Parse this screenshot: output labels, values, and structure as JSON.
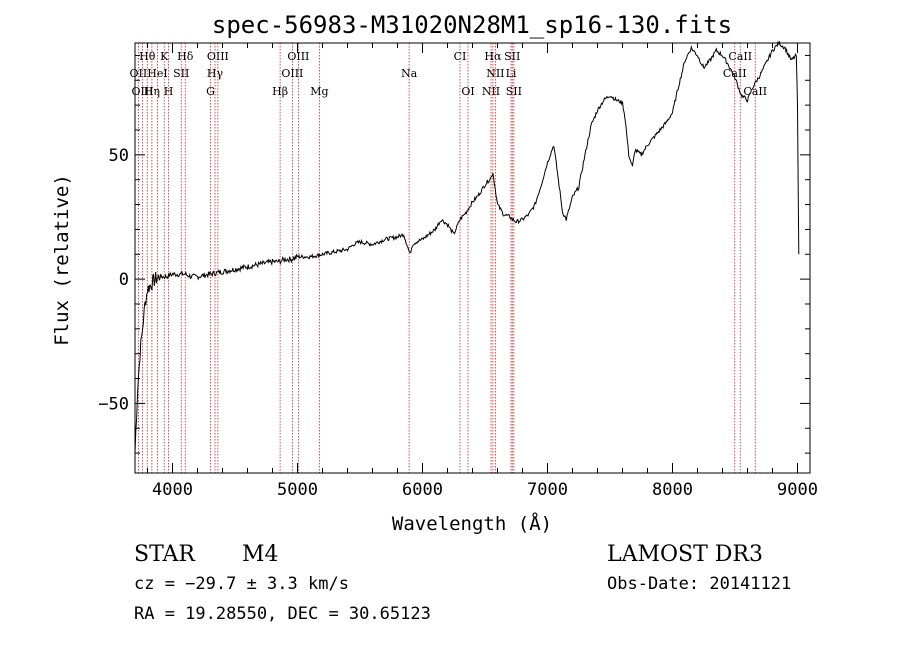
{
  "chart_data": {
    "type": "line",
    "title": "spec-56983-M31020N28M1_sp16-130.fits",
    "xlabel": "Wavelength (Å)",
    "ylabel": "Flux (relative)",
    "xlim": [
      3700,
      9100
    ],
    "ylim": [
      -78,
      95
    ],
    "x_ticks": [
      4000,
      5000,
      6000,
      7000,
      8000,
      9000
    ],
    "y_ticks": [
      -50,
      0,
      50
    ],
    "grid": false,
    "series": [
      {
        "name": "flux",
        "x": [
          3700,
          3720,
          3740,
          3760,
          3780,
          3800,
          3830,
          3860,
          3900,
          3950,
          4000,
          4050,
          4100,
          4150,
          4200,
          4300,
          4400,
          4500,
          4600,
          4700,
          4800,
          4850,
          4900,
          4950,
          5000,
          5100,
          5200,
          5300,
          5400,
          5450,
          5500,
          5600,
          5700,
          5800,
          5850,
          5900,
          5920,
          5950,
          6000,
          6100,
          6150,
          6200,
          6250,
          6300,
          6350,
          6400,
          6450,
          6500,
          6550,
          6563,
          6600,
          6650,
          6700,
          6720,
          6750,
          6800,
          6850,
          6900,
          6950,
          7000,
          7050,
          7100,
          7120,
          7150,
          7200,
          7250,
          7300,
          7350,
          7400,
          7450,
          7500,
          7550,
          7600,
          7620,
          7650,
          7680,
          7700,
          7750,
          7800,
          7850,
          7900,
          7950,
          8000,
          8050,
          8100,
          8150,
          8200,
          8250,
          8300,
          8350,
          8400,
          8450,
          8500,
          8550,
          8600,
          8650,
          8700,
          8750,
          8800,
          8850,
          8900,
          8950,
          8990,
          9000,
          9010
        ],
        "y": [
          -70,
          -45,
          -30,
          -20,
          -10,
          -4,
          -2,
          0,
          1,
          1,
          2,
          2,
          2,
          1,
          1,
          2,
          3,
          4,
          5,
          6,
          7,
          7,
          8,
          8,
          9,
          9,
          10,
          11,
          12,
          14,
          15,
          14,
          16,
          17,
          18,
          10,
          14,
          15,
          16,
          20,
          24,
          22,
          18,
          24,
          27,
          31,
          34,
          38,
          41,
          43,
          30,
          26,
          25,
          24,
          23,
          24,
          26,
          30,
          38,
          47,
          54,
          35,
          27,
          24,
          33,
          37,
          50,
          62,
          68,
          72,
          74,
          72,
          71,
          65,
          50,
          45,
          52,
          50,
          54,
          57,
          60,
          63,
          67,
          78,
          88,
          93,
          90,
          85,
          88,
          92,
          90,
          86,
          81,
          74,
          72,
          78,
          82,
          87,
          92,
          95,
          93,
          88,
          90,
          70,
          10
        ]
      }
    ],
    "line_labels": [
      {
        "text": "Hθ",
        "row": 1,
        "x": 3798
      },
      {
        "text": "K",
        "row": 1,
        "x": 3934
      },
      {
        "text": "Hδ",
        "row": 1,
        "x": 4102
      },
      {
        "text": "OIII",
        "row": 1,
        "x": 4363
      },
      {
        "text": "OIII",
        "row": 1,
        "x": 5007
      },
      {
        "text": "CI",
        "row": 1,
        "x": 6300
      },
      {
        "text": "Hα",
        "row": 1,
        "x": 6563
      },
      {
        "text": "SII",
        "row": 1,
        "x": 6718
      },
      {
        "text": "CaII",
        "row": 1,
        "x": 8542
      },
      {
        "text": "OII",
        "row": 2,
        "x": 3727
      },
      {
        "text": "HeI",
        "row": 2,
        "x": 3880
      },
      {
        "text": "SII",
        "row": 2,
        "x": 4070
      },
      {
        "text": "Hγ",
        "row": 2,
        "x": 4340
      },
      {
        "text": "OIII",
        "row": 2,
        "x": 4959
      },
      {
        "text": "Na",
        "row": 2,
        "x": 5893
      },
      {
        "text": "NII",
        "row": 2,
        "x": 6583
      },
      {
        "text": "Li",
        "row": 2,
        "x": 6708
      },
      {
        "text": "CaII",
        "row": 2,
        "x": 8498
      },
      {
        "text": "OIII",
        "row": 3,
        "x": 3760
      },
      {
        "text": "Hη",
        "row": 3,
        "x": 3835
      },
      {
        "text": "H",
        "row": 3,
        "x": 3968
      },
      {
        "text": "G",
        "row": 3,
        "x": 4304
      },
      {
        "text": "Hβ",
        "row": 3,
        "x": 4861
      },
      {
        "text": "Mg",
        "row": 3,
        "x": 5175
      },
      {
        "text": "OI",
        "row": 3,
        "x": 6364
      },
      {
        "text": "NII",
        "row": 3,
        "x": 6548
      },
      {
        "text": "SII",
        "row": 3,
        "x": 6731
      },
      {
        "text": "CaII",
        "row": 3,
        "x": 8662
      }
    ],
    "line_marks": [
      3727,
      3760,
      3798,
      3835,
      3880,
      3934,
      3968,
      4070,
      4102,
      4304,
      4340,
      4363,
      4861,
      4959,
      5007,
      5175,
      5893,
      6300,
      6364,
      6548,
      6563,
      6583,
      6708,
      6718,
      6731,
      8498,
      8542,
      8662
    ]
  },
  "info": {
    "object_class": "STAR",
    "subclass": "M4",
    "survey": "LAMOST DR3",
    "redshift": "cz = −29.7 ± 3.3 km/s",
    "obs_date": "Obs-Date: 20141121",
    "coords": "RA =  19.28550, DEC =  30.65123"
  },
  "colors": {
    "line_marker": "#cc2222",
    "spectrum": "#000000",
    "background": "#ffffff"
  }
}
